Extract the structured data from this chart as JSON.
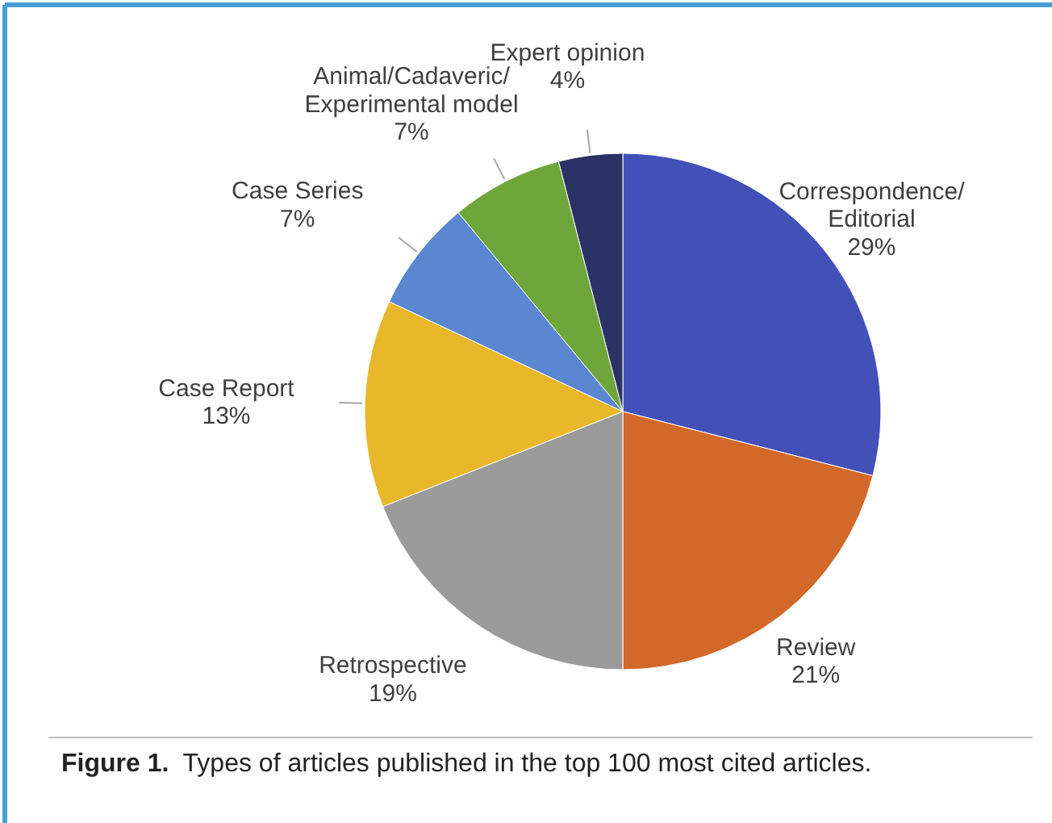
{
  "chart_data": {
    "type": "pie",
    "categories": [
      "Correspondence/Editorial",
      "Review",
      "Retrospective",
      "Case Report",
      "Case Series",
      "Animal/Cadaveric/Experimental model",
      "Expert opinion"
    ],
    "values": [
      29,
      21,
      19,
      13,
      7,
      7,
      4
    ],
    "colors": [
      "#4350b8",
      "#d2692a",
      "#9b9b9b",
      "#e8b82a",
      "#5b86d0",
      "#6fa63c",
      "#2b3366"
    ],
    "value_labels": [
      "29%",
      "21%",
      "19%",
      "13%",
      "7%",
      "7%",
      "4%"
    ],
    "annotations": [
      "Figure 1.  Types of articles published in the top 100 most cited articles."
    ]
  }
}
